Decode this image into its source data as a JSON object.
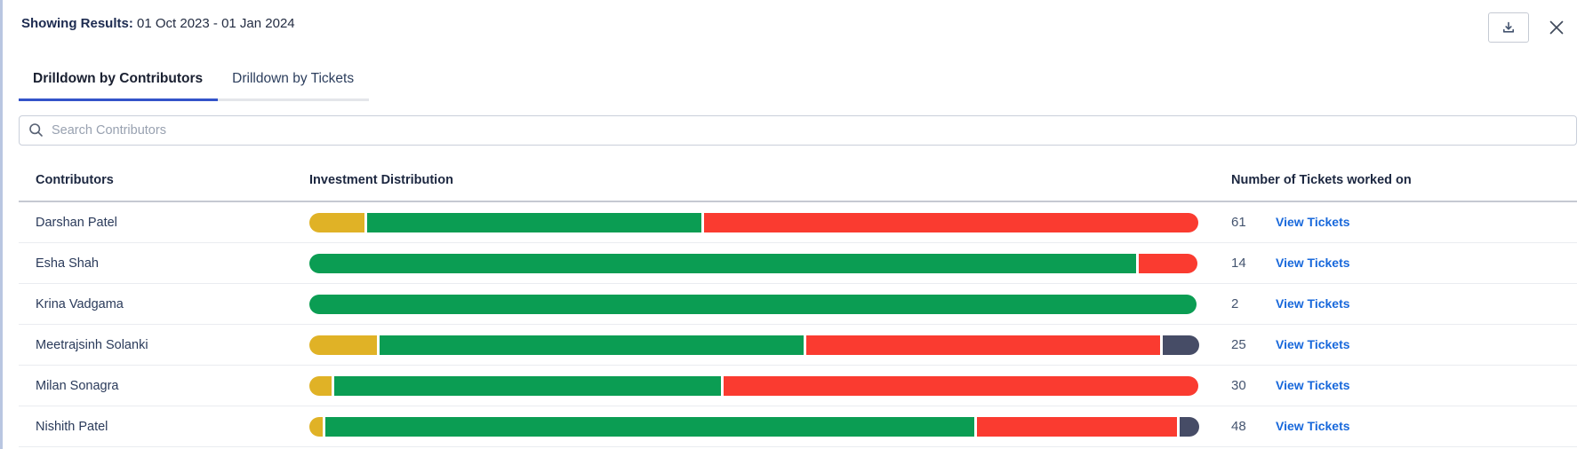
{
  "header": {
    "showing_results_label": "Showing Results:",
    "showing_results_value": "01 Oct 2023 - 01 Jan 2024"
  },
  "tabs": [
    {
      "label": "Drilldown by Contributors",
      "active": true
    },
    {
      "label": "Drilldown by Tickets",
      "active": false
    }
  ],
  "search": {
    "placeholder": "Search Contributors",
    "value": ""
  },
  "table": {
    "columns": [
      "Contributors",
      "Investment Distribution",
      "Number of Tickets worked on"
    ],
    "link_label": "View Tickets",
    "rows": [
      {
        "name": "Darshan Patel",
        "tickets": "61",
        "segments": [
          {
            "color": "yellow",
            "pct": 6.4
          },
          {
            "color": "green",
            "pct": 37.8
          },
          {
            "color": "red",
            "pct": 55.8
          }
        ]
      },
      {
        "name": "Esha Shah",
        "tickets": "14",
        "segments": [
          {
            "color": "green",
            "pct": 93.2
          },
          {
            "color": "red",
            "pct": 6.8
          }
        ]
      },
      {
        "name": "Krina Vadgama",
        "tickets": "2",
        "segments": [
          {
            "color": "green",
            "pct": 100
          }
        ]
      },
      {
        "name": "Meetrajsinh Solanki",
        "tickets": "25",
        "segments": [
          {
            "color": "yellow",
            "pct": 7.8
          },
          {
            "color": "green",
            "pct": 47.9
          },
          {
            "color": "red",
            "pct": 40.0
          },
          {
            "color": "dark",
            "pct": 4.3
          }
        ]
      },
      {
        "name": "Milan Sonagra",
        "tickets": "30",
        "segments": [
          {
            "color": "yellow",
            "pct": 2.7
          },
          {
            "color": "green",
            "pct": 43.7
          },
          {
            "color": "red",
            "pct": 53.6
          }
        ]
      },
      {
        "name": "Nishith Patel",
        "tickets": "48",
        "segments": [
          {
            "color": "yellow",
            "pct": 1.7
          },
          {
            "color": "green",
            "pct": 73.2
          },
          {
            "color": "red",
            "pct": 22.7
          },
          {
            "color": "dark",
            "pct": 2.4
          }
        ]
      }
    ]
  },
  "colors": {
    "segment": {
      "yellow": "#e0b226",
      "green": "#0b9d53",
      "red": "#fa3b30",
      "dark": "#464c66"
    },
    "link_blue": "#1868db",
    "tab_active_underline": "#3353c9",
    "icon_gray": "#44546f"
  },
  "icons": {
    "download": "download-icon",
    "close": "close-icon",
    "search": "search-icon"
  }
}
